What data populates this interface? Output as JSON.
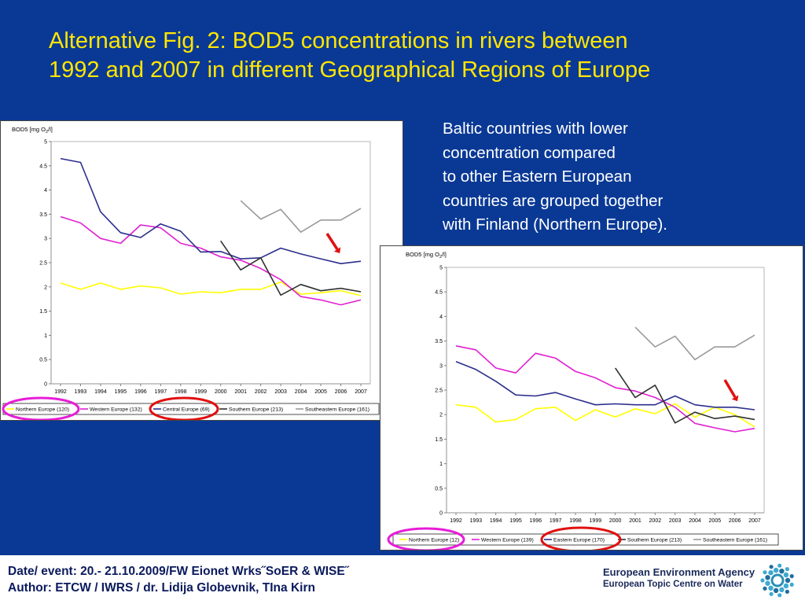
{
  "slide": {
    "title_line1": "Alternative Fig. 2: BOD5 concentrations in rivers between",
    "title_line2": "1992 and 2007 in different Geographical Regions of Europe",
    "note_lines": [
      "Baltic countries with lower",
      "concentration compared",
      "to other Eastern European",
      "countries are grouped together",
      "with Finland (Northern Europe)."
    ],
    "footer_line1": "Date/ event: 20.- 21.10.2009/FW Eionet Wrks˝SoER & WISE˝",
    "footer_line2": "Author: ETCW / IWRS / dr. Lidija Globevnik, TIna Kirn",
    "eea_line1": "European Environment Agency",
    "eea_line2": "European Topic Centre on Water",
    "colors": {
      "background": "#0a3995",
      "title": "#ffe600",
      "highlight_magenta": "#e81cd8",
      "highlight_red": "#e01010",
      "arrow": "#e01010"
    },
    "icons": [
      "red-arrow-icon",
      "eea-logo-icon"
    ]
  },
  "chart_data": [
    {
      "type": "line",
      "ylabel": "BOD5 [mg O2/l]",
      "ylim": [
        0,
        5
      ],
      "yticks": [
        "0",
        "0.5",
        "1",
        "1.5",
        "2",
        "2.5",
        "3",
        "3.5",
        "4",
        "4.5",
        "5"
      ],
      "categories": [
        "1992",
        "1993",
        "1994",
        "1995",
        "1996",
        "1997",
        "1998",
        "1999",
        "2000",
        "2001",
        "2002",
        "2003",
        "2004",
        "2005",
        "2006",
        "2007"
      ],
      "grid": false,
      "legend_position": "bottom",
      "series": [
        {
          "name": "Northern Europe (120)",
          "color": "#ffff00",
          "values": [
            2.08,
            1.95,
            2.08,
            1.95,
            2.02,
            1.98,
            1.85,
            1.9,
            1.88,
            1.95,
            1.95,
            2.1,
            1.85,
            1.88,
            1.92,
            1.82
          ]
        },
        {
          "name": "Western Europe (132)",
          "color": "#e11fd2",
          "values": [
            3.45,
            3.32,
            3.0,
            2.9,
            3.28,
            3.22,
            2.9,
            2.8,
            2.62,
            2.55,
            2.38,
            2.15,
            1.8,
            1.73,
            1.63,
            1.73
          ]
        },
        {
          "name": "Central Europe (69)",
          "color": "#2b2e8c",
          "values": [
            4.65,
            4.57,
            3.55,
            3.12,
            3.02,
            3.3,
            3.15,
            2.72,
            2.73,
            2.58,
            2.6,
            2.8,
            2.68,
            2.58,
            2.48,
            2.53
          ]
        },
        {
          "name": "Southern Europe (213)",
          "color": "#303030",
          "values": [
            null,
            null,
            null,
            null,
            null,
            null,
            null,
            null,
            2.95,
            2.35,
            2.6,
            1.83,
            2.05,
            1.92,
            1.97,
            1.9
          ]
        },
        {
          "name": "Southeastern Europe (161)",
          "color": "#9a9a9a",
          "values": [
            null,
            null,
            null,
            null,
            null,
            null,
            null,
            null,
            null,
            3.78,
            3.4,
            3.6,
            3.13,
            3.38,
            3.38,
            3.62
          ]
        }
      ],
      "highlighted_legend": [
        "Northern Europe (120)",
        "Central Europe (69)"
      ]
    },
    {
      "type": "line",
      "ylabel": "BOD5 [mg O2/l]",
      "ylim": [
        0,
        5
      ],
      "yticks": [
        "0",
        "0.5",
        "1",
        "1.5",
        "2",
        "2.5",
        "3",
        "3.5",
        "4",
        "4.5",
        "5"
      ],
      "categories": [
        "1992",
        "1993",
        "1994",
        "1995",
        "1996",
        "1997",
        "1998",
        "1999",
        "2000",
        "2001",
        "2002",
        "2003",
        "2004",
        "2005",
        "2006",
        "2007"
      ],
      "grid": false,
      "legend_position": "bottom",
      "series": [
        {
          "name": "Northern Europe (12)",
          "color": "#ffff00",
          "values": [
            2.2,
            2.15,
            1.85,
            1.9,
            2.12,
            2.15,
            1.88,
            2.1,
            1.95,
            2.12,
            2.02,
            2.22,
            1.95,
            2.15,
            2.0,
            1.75
          ]
        },
        {
          "name": "Western Europe (139)",
          "color": "#e11fd2",
          "values": [
            3.4,
            3.32,
            2.95,
            2.85,
            3.25,
            3.15,
            2.88,
            2.75,
            2.55,
            2.48,
            2.35,
            2.15,
            1.82,
            1.73,
            1.65,
            1.72
          ]
        },
        {
          "name": "Eastern Europe (170)",
          "color": "#2b2e8c",
          "values": [
            3.08,
            2.92,
            2.68,
            2.4,
            2.38,
            2.45,
            2.32,
            2.2,
            2.22,
            2.2,
            2.2,
            2.38,
            2.2,
            2.15,
            2.15,
            2.1
          ]
        },
        {
          "name": "Southern Europe (213)",
          "color": "#303030",
          "values": [
            null,
            null,
            null,
            null,
            null,
            null,
            null,
            null,
            2.95,
            2.35,
            2.6,
            1.83,
            2.05,
            1.92,
            1.97,
            1.9
          ]
        },
        {
          "name": "Southeastern Europe (161)",
          "color": "#9a9a9a",
          "values": [
            null,
            null,
            null,
            null,
            null,
            null,
            null,
            null,
            null,
            3.78,
            3.38,
            3.6,
            3.12,
            3.38,
            3.38,
            3.62
          ]
        }
      ],
      "highlighted_legend": [
        "Northern Europe (12)",
        "Eastern Europe (170)"
      ]
    }
  ]
}
